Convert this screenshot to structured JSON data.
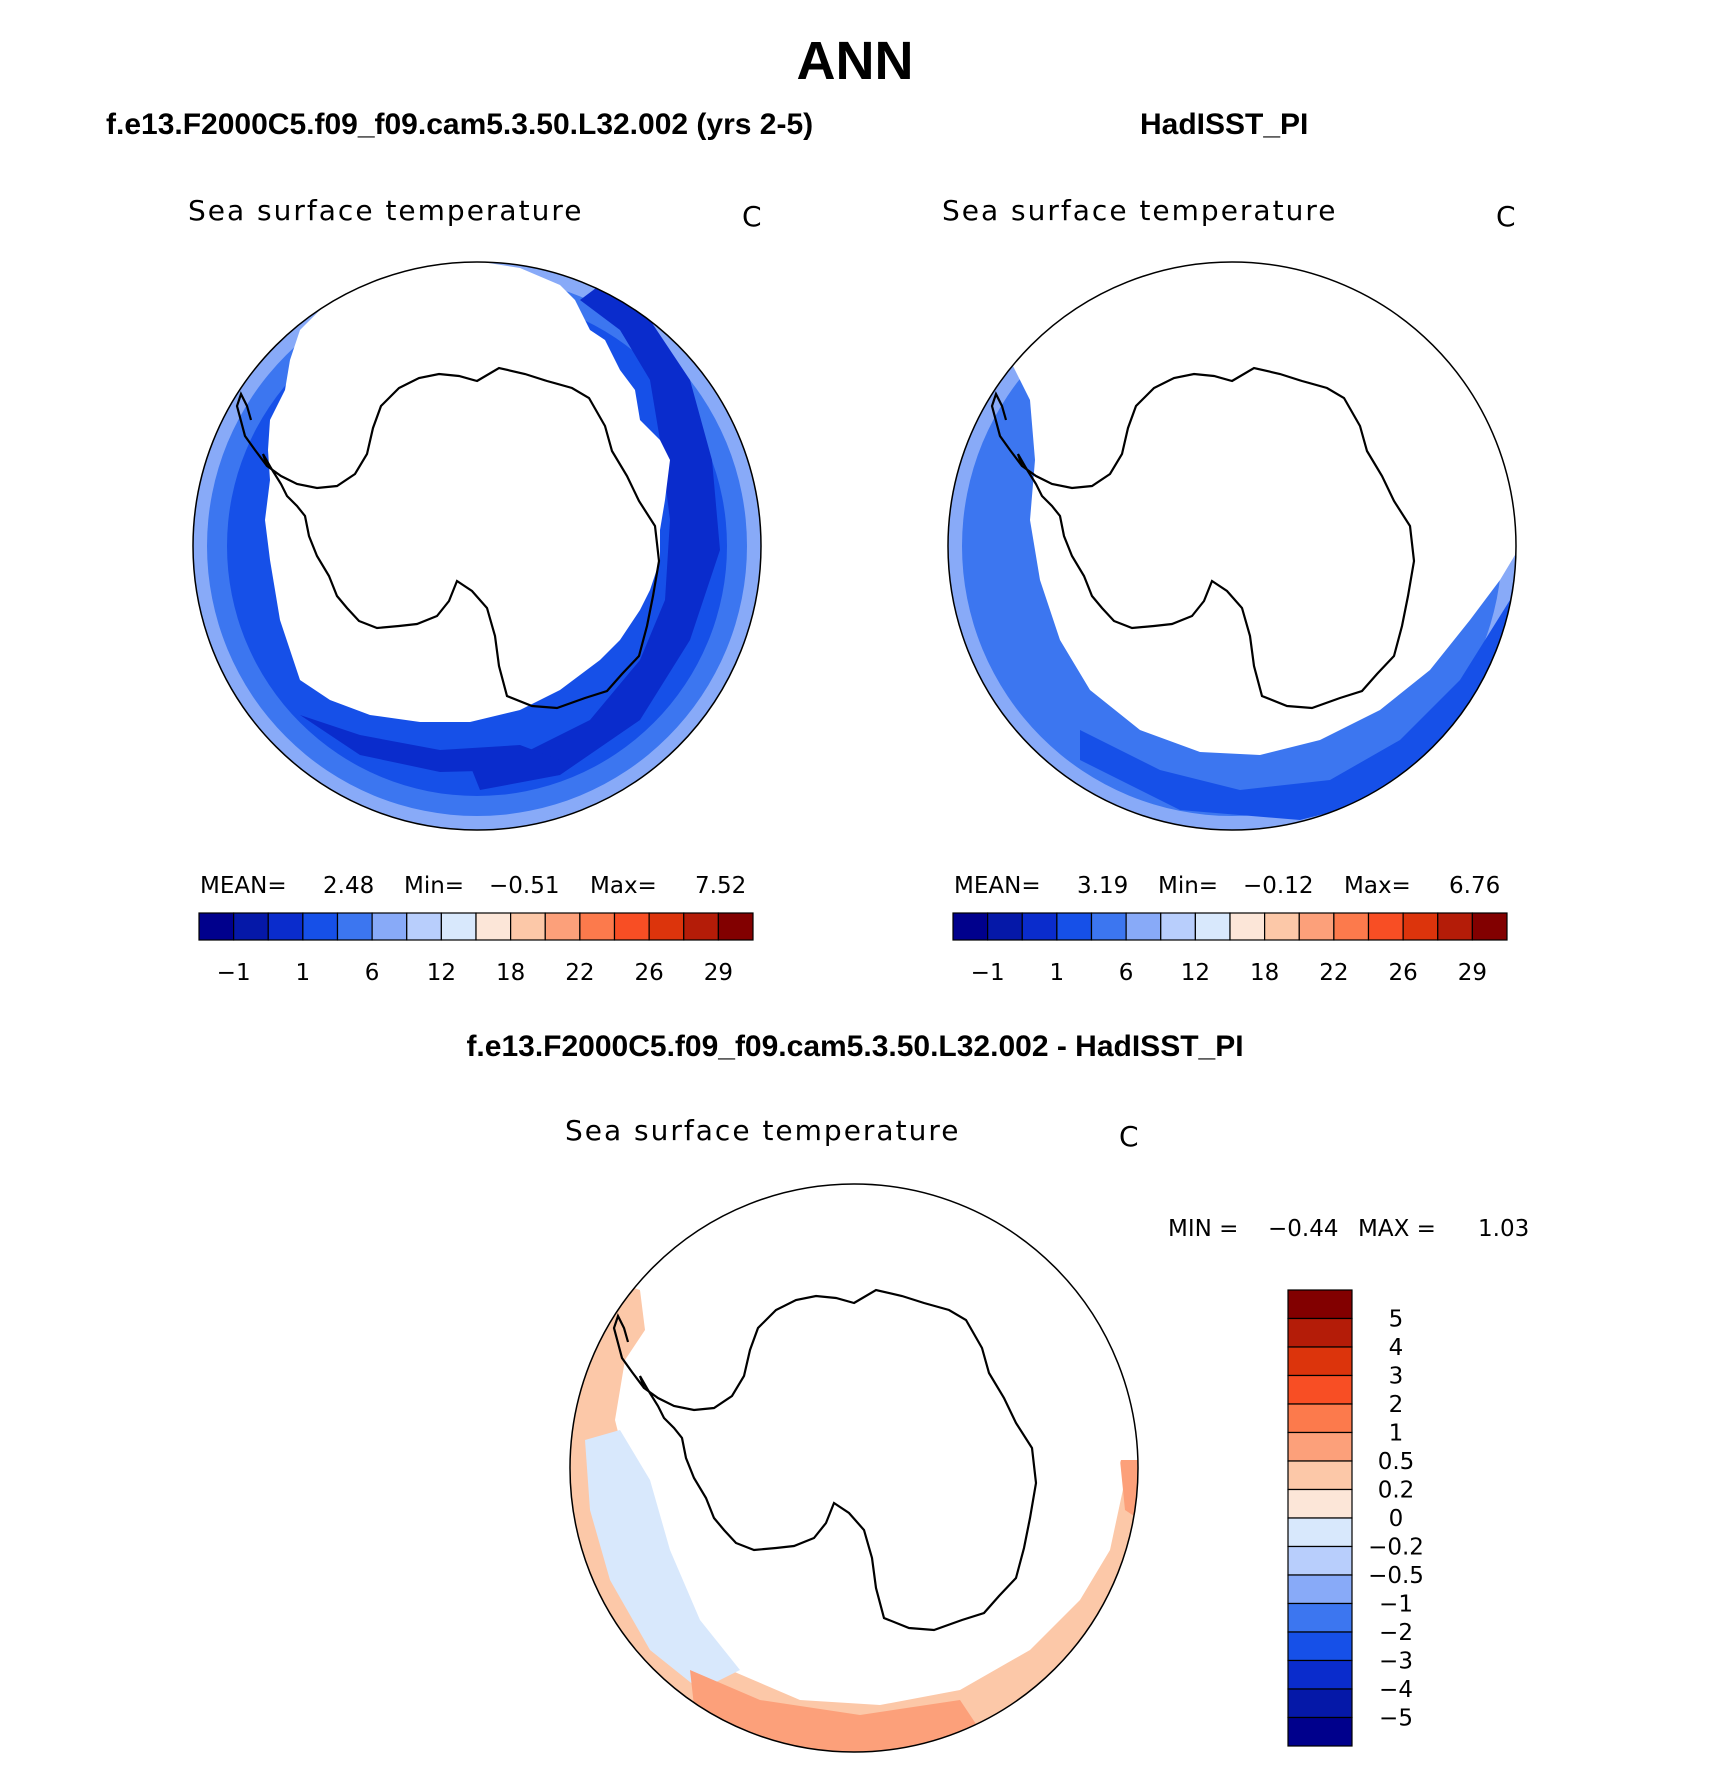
{
  "title": "ANN",
  "panels": [
    {
      "header": "f.e13.F2000C5.f09_f09.cam5.3.50.L32.002 (yrs 2-5)",
      "variable": "Sea surface temperature",
      "units": "C",
      "stats": {
        "mean_label": "MEAN=",
        "mean": "2.48",
        "min_label": "Min=",
        "min": "−0.51",
        "max_label": "Max=",
        "max": "7.52"
      }
    },
    {
      "header": "HadISST_PI",
      "variable": "Sea surface temperature",
      "units": "C",
      "stats": {
        "mean_label": "MEAN=",
        "mean": "3.19",
        "min_label": "Min=",
        "min": "−0.12",
        "max_label": "Max=",
        "max": "6.76"
      }
    }
  ],
  "difference": {
    "header": "f.e13.F2000C5.f09_f09.cam5.3.50.L32.002 - HadISST_PI",
    "variable": "Sea surface temperature",
    "units": "C",
    "minmax": {
      "min_label": "MIN =",
      "min": "−0.44",
      "max_label": "MAX =",
      "max": "1.03"
    }
  },
  "chart_data": [
    {
      "type": "heatmap",
      "projection": "south polar stereographic",
      "title": "f.e13.F2000C5.f09_f09.cam5.3.50.L32.002 (yrs 2-5)",
      "variable": "Sea surface temperature",
      "units": "C",
      "mean": 2.48,
      "min": -0.51,
      "max": 7.52,
      "colorbar": {
        "tick_labels": [
          "−1",
          "1",
          "6",
          "12",
          "18",
          "22",
          "26",
          "29"
        ],
        "colors": [
          "#00008c",
          "#0518a8",
          "#0a2ccc",
          "#1650e8",
          "#3c76f0",
          "#88aaf8",
          "#b8cefc",
          "#d8e8fc",
          "#fce6d8",
          "#fcc8a8",
          "#fca07a",
          "#fc7a4c",
          "#f84e24",
          "#dc340c",
          "#b41c08",
          "#820000"
        ]
      }
    },
    {
      "type": "heatmap",
      "projection": "south polar stereographic",
      "title": "HadISST_PI",
      "variable": "Sea surface temperature",
      "units": "C",
      "mean": 3.19,
      "min": -0.12,
      "max": 6.76,
      "colorbar": {
        "tick_labels": [
          "−1",
          "1",
          "6",
          "12",
          "18",
          "22",
          "26",
          "29"
        ],
        "colors": [
          "#00008c",
          "#0518a8",
          "#0a2ccc",
          "#1650e8",
          "#3c76f0",
          "#88aaf8",
          "#b8cefc",
          "#d8e8fc",
          "#fce6d8",
          "#fcc8a8",
          "#fca07a",
          "#fc7a4c",
          "#f84e24",
          "#dc340c",
          "#b41c08",
          "#820000"
        ]
      }
    },
    {
      "type": "heatmap",
      "projection": "south polar stereographic",
      "title": "f.e13.F2000C5.f09_f09.cam5.3.50.L32.002 - HadISST_PI",
      "variable": "Sea surface temperature",
      "units": "C",
      "min": -0.44,
      "max": 1.03,
      "colorbar": {
        "orientation": "vertical",
        "tick_labels": [
          "5",
          "4",
          "3",
          "2",
          "1",
          "0.5",
          "0.2",
          "0",
          "−0.2",
          "−0.5",
          "−1",
          "−2",
          "−3",
          "−4",
          "−5"
        ],
        "colors": [
          "#820000",
          "#b41c08",
          "#dc340c",
          "#f84e24",
          "#fc7a4c",
          "#fca07a",
          "#fcc8a8",
          "#fce6d8",
          "#d8e8fc",
          "#b8cefc",
          "#88aaf8",
          "#3c76f0",
          "#1650e8",
          "#0a2ccc",
          "#0518a8",
          "#00008c"
        ]
      }
    }
  ]
}
